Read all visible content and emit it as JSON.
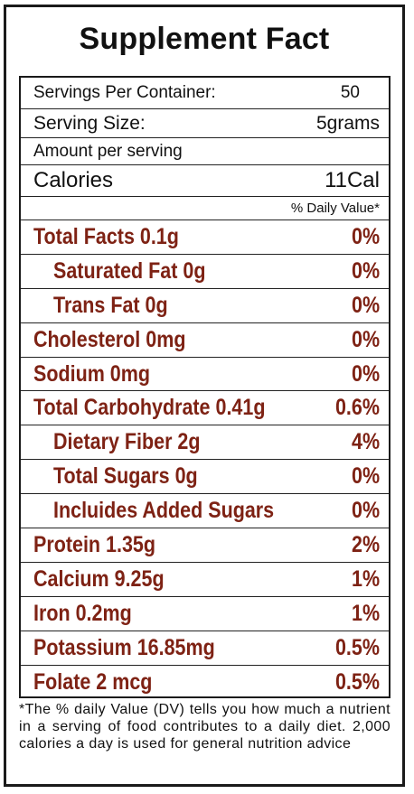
{
  "title": "Supplement Fact",
  "servings_per_container": {
    "label": "Servings Per Container:",
    "value": "50"
  },
  "serving_size": {
    "label": "Serving Size:",
    "value": "5grams"
  },
  "amount_per_serving": "Amount per serving",
  "calories": {
    "label": "Calories",
    "value": "11Cal"
  },
  "daily_value_header": "% Daily Value*",
  "nutrients": [
    {
      "label": "Total Facts 0.1g",
      "value": "0%",
      "indent": false
    },
    {
      "label": "Saturated Fat 0g",
      "value": "0%",
      "indent": true
    },
    {
      "label": "Trans Fat 0g",
      "value": "0%",
      "indent": true
    },
    {
      "label": "Cholesterol 0mg",
      "value": "0%",
      "indent": false
    },
    {
      "label": "Sodium 0mg",
      "value": "0%",
      "indent": false
    },
    {
      "label": "Total Carbohydrate 0.41g",
      "value": "0.6%",
      "indent": false
    },
    {
      "label": "Dietary Fiber 2g",
      "value": "4%",
      "indent": true
    },
    {
      "label": "Total Sugars 0g",
      "value": "0%",
      "indent": true
    },
    {
      "label": "Incluides Added Sugars",
      "value": "0%",
      "indent": true
    },
    {
      "label": "Protein 1.35g",
      "value": "2%",
      "indent": false
    },
    {
      "label": "Calcium 9.25g",
      "value": "1%",
      "indent": false
    },
    {
      "label": "Iron 0.2mg",
      "value": "1%",
      "indent": false
    },
    {
      "label": "Potassium 16.85mg",
      "value": "0.5%",
      "indent": false
    },
    {
      "label": "Folate 2 mcg",
      "value": "0.5%",
      "indent": false
    }
  ],
  "footnote": "*The % daily Value (DV) tells you how much a nutrient in a serving of food contributes to a daily diet. 2,000 calories a day  is used for general nutrition advice",
  "colors": {
    "nutrient_text": "#7e2214",
    "border": "#1a1a1a",
    "text": "#111111"
  }
}
